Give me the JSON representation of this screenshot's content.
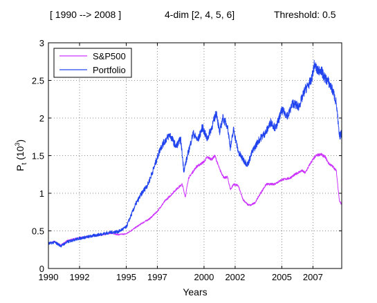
{
  "chart_data": {
    "type": "line",
    "title_parts": [
      "[ 1990 --> 2008 ]",
      "4-dim [2, 4, 5, 6]",
      "Threshold: 0.5"
    ],
    "xlabel": "Years",
    "ylabel_main": "P",
    "ylabel_sub": "t",
    "ylabel_unit_base": "(10",
    "ylabel_unit_exp": "3",
    "ylabel_unit_close": ")",
    "xlim": [
      1990.0,
      2008.85
    ],
    "ylim": [
      0,
      3
    ],
    "x_ticks": [
      1990,
      1992,
      1995,
      1997,
      2000,
      2002,
      2005,
      2007
    ],
    "x_tick_labels": [
      "1990",
      "1992",
      "1995",
      "1997",
      "2000",
      "2002",
      "2005",
      "2007"
    ],
    "y_ticks": [
      0,
      0.5,
      1,
      1.5,
      2,
      2.5,
      3
    ],
    "y_tick_labels": [
      "0",
      "0.5",
      "1",
      "1.5",
      "2",
      "2.5",
      "3"
    ],
    "grid": true,
    "legend_position": "top-left",
    "series": [
      {
        "name": "S&P500",
        "color": "#cc33ff",
        "points": [
          [
            1990.0,
            0.33
          ],
          [
            1990.4,
            0.36
          ],
          [
            1990.8,
            0.31
          ],
          [
            1991.2,
            0.37
          ],
          [
            1991.6,
            0.39
          ],
          [
            1992.0,
            0.41
          ],
          [
            1992.5,
            0.42
          ],
          [
            1993.0,
            0.44
          ],
          [
            1993.5,
            0.45
          ],
          [
            1994.0,
            0.47
          ],
          [
            1994.5,
            0.45
          ],
          [
            1995.0,
            0.46
          ],
          [
            1995.5,
            0.53
          ],
          [
            1996.0,
            0.6
          ],
          [
            1996.5,
            0.66
          ],
          [
            1997.0,
            0.76
          ],
          [
            1997.5,
            0.9
          ],
          [
            1997.8,
            0.96
          ],
          [
            1998.2,
            1.05
          ],
          [
            1998.6,
            1.12
          ],
          [
            1998.8,
            0.95
          ],
          [
            1999.0,
            1.2
          ],
          [
            1999.5,
            1.35
          ],
          [
            2000.0,
            1.42
          ],
          [
            2000.2,
            1.48
          ],
          [
            2000.5,
            1.45
          ],
          [
            2000.7,
            1.5
          ],
          [
            2001.0,
            1.32
          ],
          [
            2001.3,
            1.2
          ],
          [
            2001.5,
            1.22
          ],
          [
            2001.7,
            1.05
          ],
          [
            2001.9,
            1.12
          ],
          [
            2002.2,
            1.1
          ],
          [
            2002.5,
            0.92
          ],
          [
            2002.8,
            0.85
          ],
          [
            2003.0,
            0.84
          ],
          [
            2003.3,
            0.88
          ],
          [
            2003.6,
            0.99
          ],
          [
            2004.0,
            1.12
          ],
          [
            2004.5,
            1.12
          ],
          [
            2005.0,
            1.18
          ],
          [
            2005.5,
            1.2
          ],
          [
            2006.0,
            1.27
          ],
          [
            2006.3,
            1.3
          ],
          [
            2006.5,
            1.27
          ],
          [
            2006.9,
            1.42
          ],
          [
            2007.2,
            1.5
          ],
          [
            2007.5,
            1.52
          ],
          [
            2007.8,
            1.48
          ],
          [
            2008.0,
            1.4
          ],
          [
            2008.3,
            1.35
          ],
          [
            2008.5,
            1.3
          ],
          [
            2008.7,
            0.9
          ],
          [
            2008.85,
            0.85
          ]
        ]
      },
      {
        "name": "Portfolio",
        "color": "#2244ee",
        "points": [
          [
            1990.0,
            0.33
          ],
          [
            1990.4,
            0.35
          ],
          [
            1990.8,
            0.3
          ],
          [
            1991.2,
            0.35
          ],
          [
            1991.6,
            0.38
          ],
          [
            1992.0,
            0.4
          ],
          [
            1992.5,
            0.42
          ],
          [
            1993.0,
            0.44
          ],
          [
            1993.5,
            0.46
          ],
          [
            1994.0,
            0.48
          ],
          [
            1994.5,
            0.49
          ],
          [
            1995.0,
            0.55
          ],
          [
            1995.3,
            0.7
          ],
          [
            1995.6,
            0.85
          ],
          [
            1996.0,
            1.0
          ],
          [
            1996.4,
            1.12
          ],
          [
            1996.8,
            1.35
          ],
          [
            1997.2,
            1.6
          ],
          [
            1997.5,
            1.7
          ],
          [
            1997.8,
            1.78
          ],
          [
            1998.2,
            1.62
          ],
          [
            1998.5,
            1.72
          ],
          [
            1998.7,
            1.3
          ],
          [
            1999.0,
            1.55
          ],
          [
            1999.3,
            1.8
          ],
          [
            1999.6,
            1.7
          ],
          [
            1999.9,
            1.88
          ],
          [
            2000.2,
            1.72
          ],
          [
            2000.5,
            1.88
          ],
          [
            2000.8,
            2.08
          ],
          [
            2001.0,
            1.8
          ],
          [
            2001.2,
            2.0
          ],
          [
            2001.5,
            1.9
          ],
          [
            2001.7,
            1.6
          ],
          [
            2001.9,
            1.85
          ],
          [
            2002.2,
            1.55
          ],
          [
            2002.5,
            1.45
          ],
          [
            2002.8,
            1.38
          ],
          [
            2003.1,
            1.55
          ],
          [
            2003.5,
            1.7
          ],
          [
            2004.0,
            1.82
          ],
          [
            2004.3,
            1.95
          ],
          [
            2004.6,
            1.86
          ],
          [
            2005.0,
            2.1
          ],
          [
            2005.4,
            2.03
          ],
          [
            2005.7,
            2.2
          ],
          [
            2006.1,
            2.15
          ],
          [
            2006.5,
            2.38
          ],
          [
            2006.9,
            2.5
          ],
          [
            2007.1,
            2.72
          ],
          [
            2007.3,
            2.62
          ],
          [
            2007.5,
            2.65
          ],
          [
            2007.7,
            2.55
          ],
          [
            2008.0,
            2.48
          ],
          [
            2008.3,
            2.35
          ],
          [
            2008.5,
            2.2
          ],
          [
            2008.7,
            1.75
          ],
          [
            2008.85,
            1.8
          ]
        ]
      }
    ]
  }
}
